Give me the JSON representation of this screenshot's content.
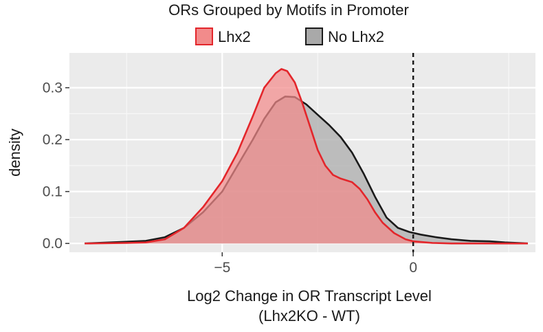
{
  "chart_data": {
    "type": "area",
    "title": "ORs Grouped by Motifs in Promoter",
    "xlabel": "Log2 Change in OR Transcript Level",
    "xlabel_sub": "(Lhx2KO - WT)",
    "ylabel": "density",
    "xlim": [
      -9,
      3.2
    ],
    "ylim": [
      -0.017,
      0.367
    ],
    "x_ticks": [
      -5,
      0
    ],
    "x_tick_labels": [
      "−5",
      "0"
    ],
    "y_ticks": [
      0.0,
      0.1,
      0.2,
      0.3
    ],
    "y_tick_labels": [
      "0.0",
      "0.1",
      "0.2",
      "0.3"
    ],
    "grid": true,
    "legend_position": "top",
    "vline": {
      "x": 0,
      "style": "dashed"
    },
    "series": [
      {
        "name": "Lhx2",
        "fill": "#f28b8b",
        "line": "#e3262b",
        "x": [
          -8.6,
          -7.5,
          -7.0,
          -6.5,
          -6.0,
          -5.5,
          -5.0,
          -4.6,
          -4.2,
          -3.9,
          -3.6,
          -3.45,
          -3.3,
          -3.1,
          -2.9,
          -2.7,
          -2.5,
          -2.3,
          -2.1,
          -1.9,
          -1.6,
          -1.4,
          -1.2,
          -1.0,
          -0.8,
          -0.5,
          -0.2,
          0.0,
          0.5,
          1.0,
          2.0,
          3.0
        ],
        "y": [
          0.0,
          0.001,
          0.002,
          0.008,
          0.03,
          0.07,
          0.12,
          0.175,
          0.245,
          0.3,
          0.328,
          0.336,
          0.332,
          0.31,
          0.27,
          0.225,
          0.18,
          0.15,
          0.132,
          0.125,
          0.118,
          0.105,
          0.085,
          0.06,
          0.04,
          0.02,
          0.008,
          0.004,
          0.001,
          0.0,
          0.0,
          0.0
        ]
      },
      {
        "name": "No Lhx2",
        "fill": "#a9a9a9",
        "line": "#1a1a1a",
        "x": [
          -8.6,
          -7.6,
          -7.0,
          -6.5,
          -6.0,
          -5.5,
          -5.0,
          -4.6,
          -4.2,
          -3.9,
          -3.6,
          -3.35,
          -3.1,
          -2.8,
          -2.5,
          -2.2,
          -1.9,
          -1.6,
          -1.3,
          -1.0,
          -0.7,
          -0.4,
          -0.1,
          0.2,
          0.6,
          1.0,
          1.5,
          2.0,
          2.4,
          3.0
        ],
        "y": [
          0.0,
          0.003,
          0.005,
          0.012,
          0.03,
          0.06,
          0.1,
          0.15,
          0.2,
          0.24,
          0.272,
          0.283,
          0.282,
          0.268,
          0.248,
          0.228,
          0.205,
          0.175,
          0.135,
          0.09,
          0.05,
          0.03,
          0.022,
          0.017,
          0.012,
          0.008,
          0.005,
          0.004,
          0.002,
          0.0
        ]
      }
    ]
  }
}
